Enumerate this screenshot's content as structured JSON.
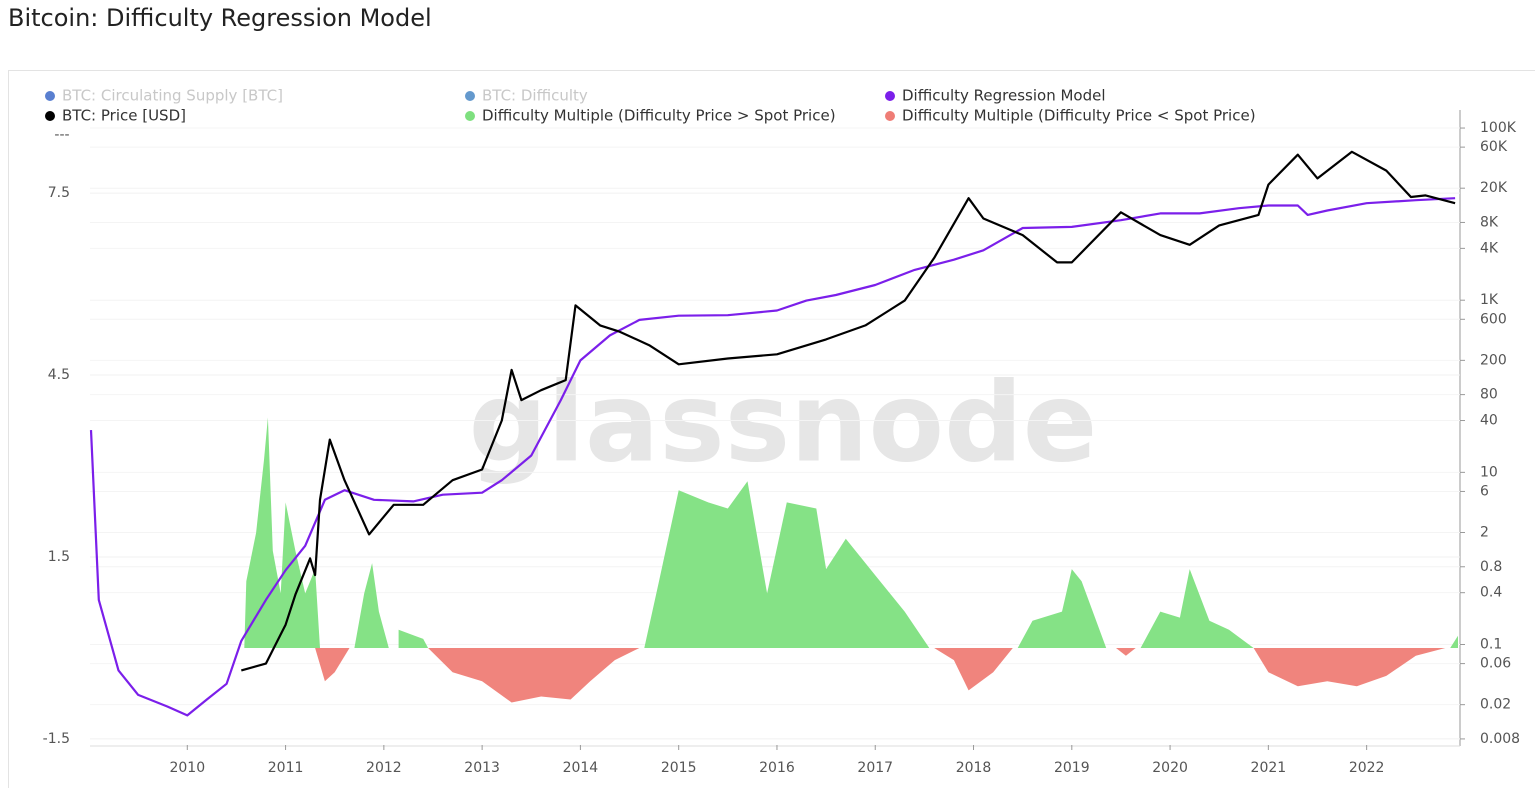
{
  "chart_data": {
    "type": "line",
    "title": "Bitcoin: Difficulty Regression Model",
    "watermark": "glassnode",
    "y_axis_top_label": "---",
    "xlim": [
      2009.01,
      2022.95
    ],
    "xticks": [
      2010,
      2011,
      2012,
      2013,
      2014,
      2015,
      2016,
      2017,
      2018,
      2019,
      2020,
      2021,
      2022
    ],
    "ylim": [
      -1.6,
      8.87
    ],
    "yticks": [
      -1.5,
      1.5,
      4.5,
      7.5
    ],
    "y2lim": [
      0.0068,
      162000
    ],
    "y2log": true,
    "y2ticks": [
      {
        "value": 100000,
        "label": "100K"
      },
      {
        "value": 60000,
        "label": "60K"
      },
      {
        "value": 20000,
        "label": "20K"
      },
      {
        "value": 8000,
        "label": "8K"
      },
      {
        "value": 4000,
        "label": "4K"
      },
      {
        "value": 1000,
        "label": "1K"
      },
      600,
      200,
      80,
      40,
      10,
      6,
      2,
      0.8,
      0.4,
      0.1,
      0.06,
      0.02,
      0.008
    ],
    "series": [
      {
        "name": "BTC: Circulating Supply [BTC]",
        "color": "#2f5fc4",
        "visible": false
      },
      {
        "name": "BTC: Difficulty",
        "color": "#3d7fc0",
        "visible": false
      },
      {
        "name": "Difficulty Regression Model",
        "color": "#7b1fea",
        "axis": "y2",
        "kind": "line",
        "x": [
          2009.02,
          2009.1,
          2009.3,
          2009.5,
          2009.8,
          2010.0,
          2010.2,
          2010.4,
          2010.55,
          2010.8,
          2011.0,
          2011.2,
          2011.4,
          2011.6,
          2011.9,
          2012.3,
          2012.6,
          2013.0,
          2013.2,
          2013.5,
          2013.8,
          2014.0,
          2014.3,
          2014.6,
          2015.0,
          2015.5,
          2016.0,
          2016.3,
          2016.6,
          2017.0,
          2017.4,
          2017.8,
          2018.1,
          2018.5,
          2019.0,
          2019.5,
          2019.9,
          2020.3,
          2020.7,
          2021.0,
          2021.3,
          2021.4,
          2021.6,
          2022.0,
          2022.5,
          2022.9
        ],
        "values": [
          31,
          0.33,
          0.05,
          0.026,
          0.019,
          0.015,
          0.023,
          0.035,
          0.11,
          0.33,
          0.73,
          1.4,
          4.8,
          6.2,
          4.8,
          4.6,
          5.5,
          5.8,
          8.1,
          15.7,
          69,
          200,
          390,
          590,
          660,
          670,
          760,
          990,
          1150,
          1500,
          2250,
          2950,
          3800,
          6900,
          7100,
          8500,
          10200,
          10200,
          11700,
          12600,
          12600,
          9800,
          11000,
          13400,
          14500,
          15300
        ]
      },
      {
        "name": "BTC: Price [USD]",
        "color": "#000000",
        "axis": "y2",
        "kind": "line",
        "x": [
          2010.55,
          2010.8,
          2011.0,
          2011.1,
          2011.25,
          2011.3,
          2011.35,
          2011.45,
          2011.6,
          2011.85,
          2012.1,
          2012.4,
          2012.7,
          2013.0,
          2013.2,
          2013.3,
          2013.4,
          2013.6,
          2013.85,
          2013.95,
          2014.2,
          2014.4,
          2014.7,
          2015.0,
          2015.5,
          2016.0,
          2016.5,
          2016.9,
          2017.3,
          2017.6,
          2017.95,
          2018.1,
          2018.5,
          2018.85,
          2019.0,
          2019.5,
          2019.9,
          2020.2,
          2020.5,
          2020.9,
          2021.0,
          2021.3,
          2021.5,
          2021.85,
          2022.2,
          2022.45,
          2022.6,
          2022.9
        ],
        "values": [
          0.05,
          0.06,
          0.17,
          0.38,
          1.0,
          0.64,
          4.8,
          24,
          8.1,
          1.9,
          4.2,
          4.2,
          8.1,
          10.8,
          40,
          155,
          69,
          90,
          118,
          870,
          510,
          430,
          300,
          180,
          210,
          235,
          350,
          510,
          990,
          3100,
          15300,
          8900,
          5700,
          2750,
          2750,
          10500,
          5700,
          4400,
          7400,
          9800,
          22000,
          49000,
          26000,
          53000,
          32000,
          15800,
          16500,
          13400
        ]
      },
      {
        "name": "Difficulty Multiple (Difficulty Price > Spot Price)",
        "color": "#7ee07f",
        "kind": "area",
        "x": [
          2010.58,
          2010.6,
          2010.7,
          2010.78,
          2010.82,
          2010.87,
          2010.95,
          2011.0,
          2011.1,
          2011.2,
          2011.3,
          2011.35,
          null,
          2011.7,
          2011.8,
          2011.88,
          2011.95,
          2012.05,
          null,
          2012.15,
          2012.4,
          2012.45,
          null,
          2014.65,
          2014.8,
          2015.0,
          2015.3,
          2015.5,
          2015.7,
          2015.9,
          2016.1,
          2016.4,
          2016.5,
          2016.7,
          2017.0,
          2017.3,
          2017.55,
          null,
          2018.45,
          2018.6,
          2018.9,
          2019.0,
          2019.1,
          2019.35,
          null,
          2019.7,
          2019.9,
          2020.1,
          2020.2,
          2020.4,
          2020.6,
          2020.85,
          null,
          2022.85,
          2022.93
        ],
        "values": [
          0,
          1.1,
          1.9,
          3.1,
          3.8,
          1.6,
          0.9,
          2.4,
          1.6,
          0.9,
          1.3,
          0,
          null,
          0,
          0.9,
          1.4,
          0.6,
          0,
          null,
          0.3,
          0.15,
          0,
          null,
          0,
          1.1,
          2.6,
          2.4,
          2.3,
          2.75,
          0.9,
          2.4,
          2.3,
          1.3,
          1.8,
          1.2,
          0.6,
          0,
          null,
          0,
          0.45,
          0.6,
          1.3,
          1.1,
          0,
          null,
          0,
          0.6,
          0.5,
          1.3,
          0.45,
          0.3,
          0,
          null,
          0,
          0.2
        ]
      },
      {
        "name": "Difficulty Multiple (Difficulty Price < Spot Price)",
        "color": "#ef7d76",
        "kind": "area",
        "x": [
          2011.3,
          2011.4,
          2011.5,
          2011.65,
          null,
          2012.45,
          2012.7,
          2013.0,
          2013.3,
          2013.6,
          2013.9,
          2014.1,
          2014.35,
          2014.6,
          null,
          2017.6,
          2017.8,
          2017.95,
          2018.2,
          2018.4,
          null,
          2019.45,
          2019.55,
          2019.65,
          null,
          2020.85,
          2021.0,
          2021.3,
          2021.6,
          2021.9,
          2022.2,
          2022.5,
          2022.8
        ],
        "values": [
          0,
          -0.55,
          -0.4,
          0,
          null,
          0,
          -0.4,
          -0.55,
          -0.9,
          -0.8,
          -0.85,
          -0.55,
          -0.2,
          0,
          null,
          0,
          -0.2,
          -0.7,
          -0.4,
          0,
          null,
          0,
          -0.13,
          0,
          null,
          0,
          -0.4,
          -0.63,
          -0.55,
          -0.63,
          -0.46,
          -0.13,
          0
        ]
      }
    ]
  }
}
